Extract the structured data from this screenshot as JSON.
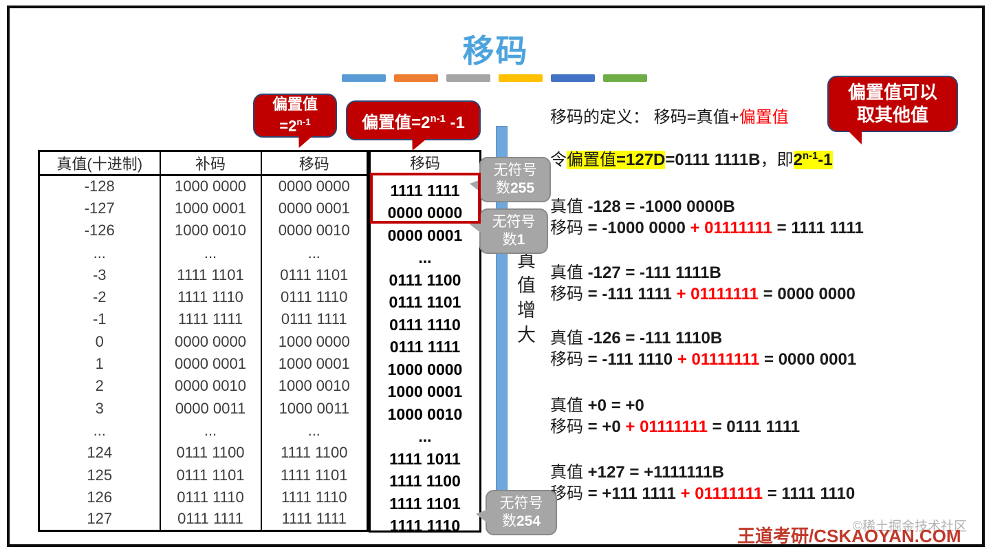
{
  "title": "移码",
  "accent_bar_colors": [
    "#5B9BD5",
    "#ED7D31",
    "#A5A5A5",
    "#FFC000",
    "#4472C4",
    "#70AD47"
  ],
  "callouts": {
    "bias_pow": {
      "line1": "偏置值",
      "line2_base": "=2",
      "line2_sup": "n-1"
    },
    "bias_pow_minus1": {
      "base": "偏置值=2",
      "sup": "n-1",
      "post": " -1"
    },
    "other_values": {
      "line1": "偏置值可以",
      "line2": "取其他值"
    },
    "unsigned_255": {
      "line1": "无符号",
      "line2_prefix": "数",
      "line2_num": "255"
    },
    "unsigned_1": {
      "line1": "无符号",
      "line2_prefix": "数",
      "line2_num": "1"
    },
    "unsigned_254": {
      "line1": "无符号",
      "line2_prefix": "数",
      "line2_num": "254"
    }
  },
  "table": {
    "headers": [
      "真值(十进制)",
      "补码",
      "移码"
    ],
    "rows": [
      [
        "-128",
        "1000 0000",
        "0000 0000"
      ],
      [
        "-127",
        "1000 0001",
        "0000 0001"
      ],
      [
        "-126",
        "1000 0010",
        "0000 0010"
      ],
      [
        "...",
        "...",
        "..."
      ],
      [
        "-3",
        "1111 1101",
        "0111 1101"
      ],
      [
        "-2",
        "1111 1110",
        "0111 1110"
      ],
      [
        "-1",
        "1111 1111",
        "0111 1111"
      ],
      [
        "0",
        "0000 0000",
        "1000 0000"
      ],
      [
        "1",
        "0000 0001",
        "1000 0001"
      ],
      [
        "2",
        "0000 0010",
        "1000 0010"
      ],
      [
        "3",
        "0000 0011",
        "1000 0011"
      ],
      [
        "...",
        "...",
        "..."
      ],
      [
        "124",
        "0111 1100",
        "1111 1100"
      ],
      [
        "125",
        "0111 1101",
        "1111 1101"
      ],
      [
        "126",
        "0111 1110",
        "1111 1110"
      ],
      [
        "127",
        "0111 1111",
        "1111 1111"
      ]
    ]
  },
  "extra_column": {
    "header": "移码",
    "values": [
      "1111 1111",
      "0000 0000",
      "0000 0001",
      "...",
      "0111 1100",
      "0111 1101",
      "0111 1110",
      "0111 1111",
      "1000 0000",
      "1000 0001",
      "1000 0010",
      "...",
      "1111 1011",
      "1111 1100",
      "1111 1101",
      "1111 1110"
    ]
  },
  "axis_label": "真值增大",
  "definition": {
    "pre": "移码的定义： 移码=真值+",
    "red": "偏置值"
  },
  "bias_line": {
    "pre": "令",
    "hl1_label": "偏置值",
    "hl1_val": "=127D",
    "eq": "=",
    "bin": "0111 1111B",
    "tail": "，即",
    "hl2_base": "2",
    "hl2_sup": "n-1",
    "hl2_post": "-1"
  },
  "examples": [
    {
      "t_label": "真值",
      "t_val": " -128 = -1000 0000B",
      "m_label": "移码",
      "m_pre": " = -1000 0000 ",
      "m_red": "+ 01111111",
      "m_post": " = 1111 1111"
    },
    {
      "t_label": "真值",
      "t_val": " -127 = -111 1111B",
      "m_label": "移码",
      "m_pre": " = -111 1111 ",
      "m_red": "+ 01111111",
      "m_post": " = 0000 0000"
    },
    {
      "t_label": "真值",
      "t_val": " -126 = -111 1110B",
      "m_label": "移码",
      "m_pre": " = -111 1110 ",
      "m_red": "+ 01111111",
      "m_post": " = 0000 0001"
    },
    {
      "t_label": "真值",
      "t_val": " +0 = +0",
      "m_label": "移码",
      "m_pre": " = +0 ",
      "m_red": "+ 01111111",
      "m_post": " = 0111 1111"
    },
    {
      "t_label": "真值",
      "t_val": " +127 = +1111111B",
      "m_label": "移码",
      "m_pre": " = +111 1111 ",
      "m_red": "+ 01111111",
      "m_post": " = 1111 1110"
    }
  ],
  "footer": {
    "brand": "王道考研/CSKAOYAN.COM",
    "watermark": "©稀土掘金技术社区"
  }
}
